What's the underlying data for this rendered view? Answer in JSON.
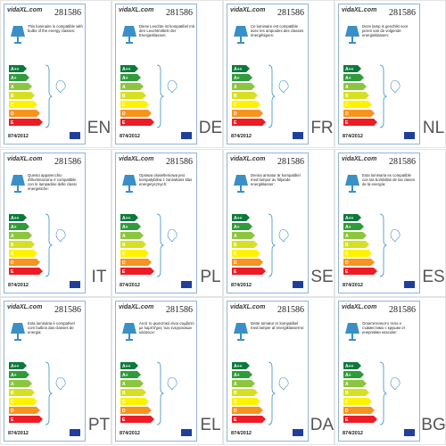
{
  "logo": "vidaXL.com",
  "code": "281586",
  "regulation": "874/2012",
  "classes": [
    "A++",
    "A+",
    "A",
    "B",
    "C",
    "D",
    "E"
  ],
  "cells": [
    {
      "lang": "EN",
      "text": "This luminaire is compatible with bulbs of the energy classes:"
    },
    {
      "lang": "DE",
      "text": "Diese Leuchte ist kompatibel mit den Leuchtmitteln der Energieklassen:"
    },
    {
      "lang": "FR",
      "text": "Ce luminaire est compatible avec les ampoules des classes énergétiques:"
    },
    {
      "lang": "NL",
      "text": "Deze lamp is geschikt voor peren van de volgende energieklassen:"
    },
    {
      "lang": "IT",
      "text": "Questo apparecchio d'illuminazione è compatibile con le lampadine delle classi energetiche:"
    },
    {
      "lang": "PL",
      "text": "Oprawa oświetleniowa jest kompatybilna z żarówkami klas energetycznych:"
    },
    {
      "lang": "SE",
      "text": "Denna armatur är kompatibel med lampor av följande energiklasser:"
    },
    {
      "lang": "ES",
      "text": "Esta luminaria es compatible con las bombillas de las clases de la energía:"
    },
    {
      "lang": "PT",
      "text": "Esta luminária é compatível com bulbos das classes de energia:"
    },
    {
      "lang": "EL",
      "text": "Αυτό το φωτιστικό είναι συμβατό με λαμπτήρες των ενεργειακών κλάσεων:"
    },
    {
      "lang": "DA",
      "text": "Dette armatur er kompatibel med lamper af energiklasserne:"
    },
    {
      "lang": "BG",
      "text": "Осветителното тяло е съвместимо с крушки от енергийни класове:"
    }
  ]
}
